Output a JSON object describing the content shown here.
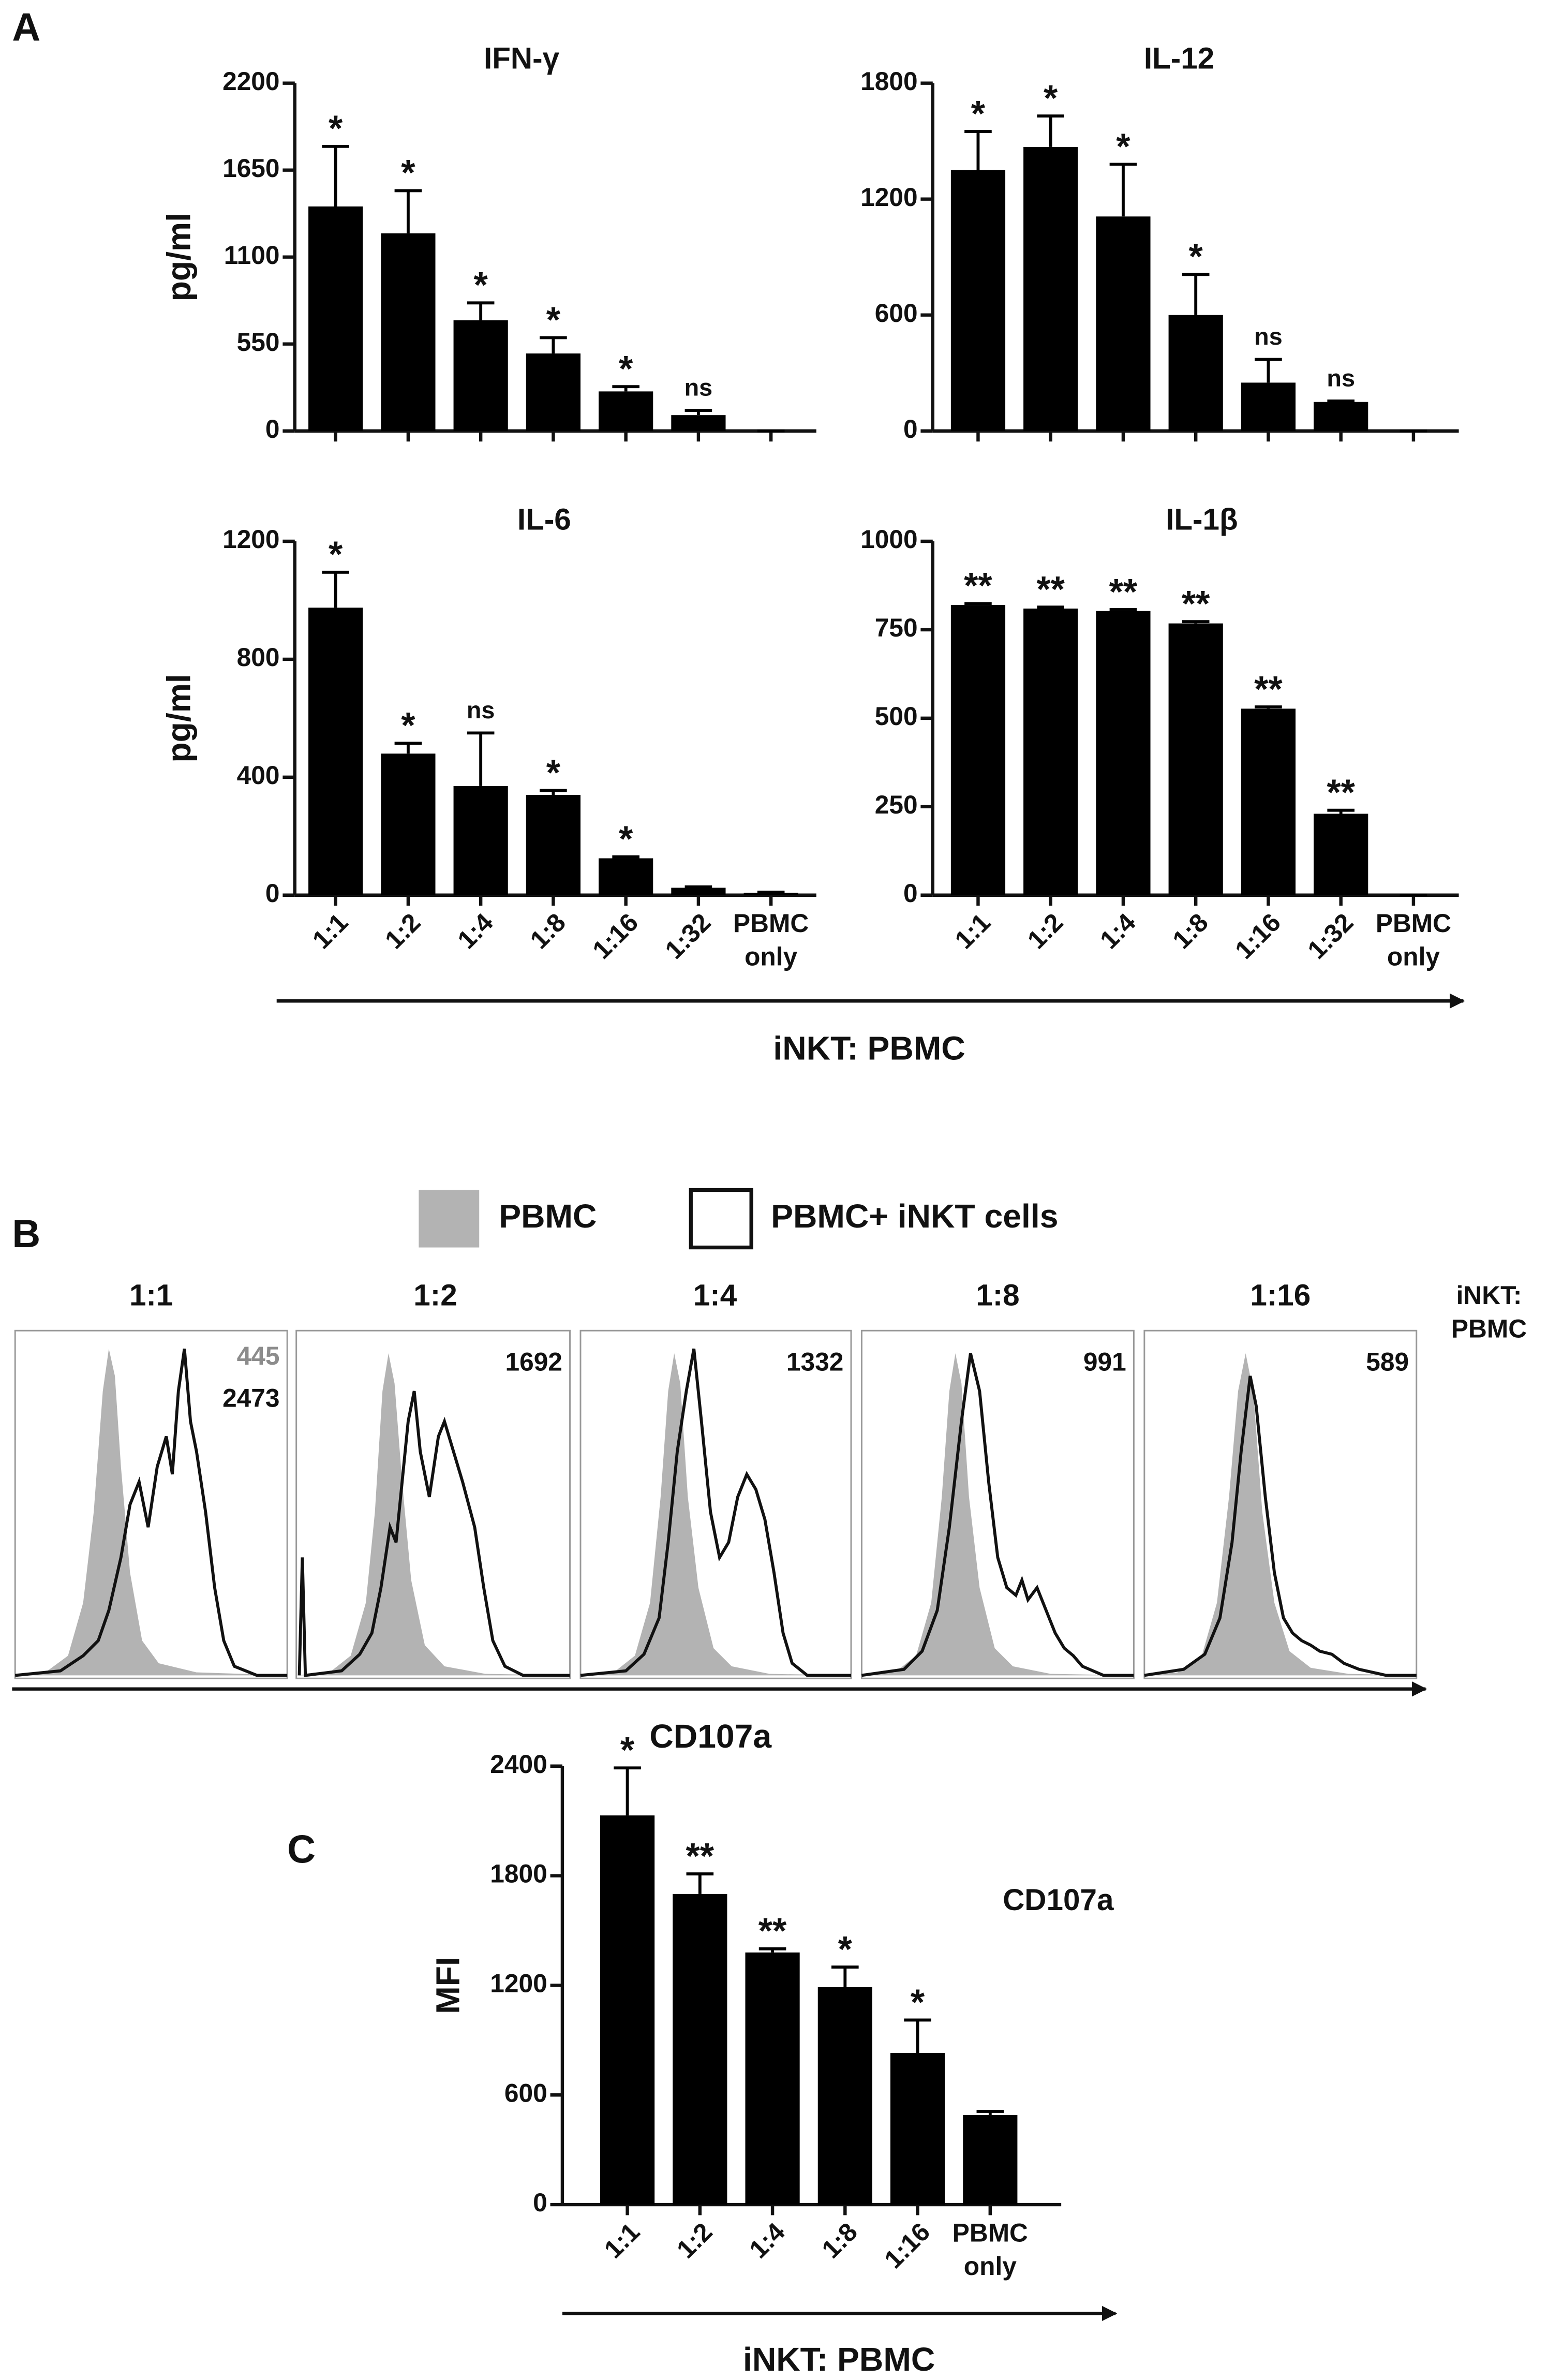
{
  "panel_labels": [
    "A",
    "B",
    "C"
  ],
  "panel_a": {
    "xlabel": "iNKT: PBMC"
  },
  "chart_data": [
    {
      "type": "bar",
      "title": "IFN-γ",
      "ylabel": "pg/ml",
      "ylim": [
        0,
        2200
      ],
      "yticks": [
        0,
        550,
        1100,
        1650,
        2200
      ],
      "color": "#000000",
      "values": [
        1420,
        1250,
        700,
        490,
        250,
        100,
        0
      ],
      "errors": [
        380,
        270,
        110,
        100,
        30,
        30,
        0
      ],
      "significance": [
        "*",
        "*",
        "*",
        "*",
        "*",
        "ns",
        null
      ]
    },
    {
      "type": "bar",
      "title": "IL-12",
      "ylim": [
        0,
        1800
      ],
      "yticks": [
        0,
        600,
        1200,
        1800
      ],
      "color": "#000000",
      "values": [
        1350,
        1470,
        1110,
        600,
        250,
        150,
        0
      ],
      "errors": [
        200,
        160,
        270,
        210,
        120,
        5,
        0
      ],
      "significance": [
        "*",
        "*",
        "*",
        "*",
        "ns",
        "ns",
        null
      ]
    },
    {
      "type": "bar",
      "title": "IL-6",
      "ylabel": "pg/ml",
      "ylim": [
        0,
        1200
      ],
      "yticks": [
        0,
        400,
        800,
        1200
      ],
      "categories": [
        "1:1",
        "1:2",
        "1:4",
        "1:8",
        "1:16",
        "1:32",
        "PBMC only"
      ],
      "color": "#000000",
      "values": [
        975,
        480,
        370,
        340,
        125,
        25,
        8
      ],
      "errors": [
        120,
        35,
        180,
        15,
        5,
        3,
        2
      ],
      "significance": [
        "*",
        "*",
        "ns",
        "*",
        "*",
        null,
        null
      ]
    },
    {
      "type": "bar",
      "title": "IL-1β",
      "ylim": [
        0,
        1000
      ],
      "yticks": [
        0,
        250,
        500,
        750,
        1000
      ],
      "categories": [
        "1:1",
        "1:2",
        "1:4",
        "1:8",
        "1:16",
        "1:32",
        "PBMC only"
      ],
      "color": "#000000",
      "values": [
        820,
        810,
        803,
        768,
        527,
        230,
        0
      ],
      "errors": [
        4,
        4,
        4,
        5,
        5,
        10,
        0
      ],
      "significance": [
        "**",
        "**",
        "**",
        "**",
        "**",
        "**",
        null
      ]
    },
    {
      "type": "bar",
      "title": "CD107a",
      "ylabel": "MFI",
      "xlabel": "iNKT: PBMC",
      "ylim": [
        0,
        2400
      ],
      "yticks": [
        0,
        600,
        1200,
        1800,
        2400
      ],
      "categories": [
        "1:1",
        "1:2",
        "1:4",
        "1:8",
        "1:16",
        "PBMC only"
      ],
      "color": "#000000",
      "values": [
        2130,
        1700,
        1380,
        1190,
        830,
        490
      ],
      "errors": [
        260,
        110,
        20,
        110,
        180,
        20
      ],
      "significance": [
        "*",
        "**",
        "**",
        "*",
        "*",
        null
      ]
    }
  ],
  "panel_b": {
    "legend": [
      "PBMC",
      "PBMC+ iNKT cells"
    ],
    "xlabel": "CD107a",
    "side_label": "iNKT: PBMC",
    "panels": [
      {
        "title": "1:1",
        "pbmc_mfi": 445,
        "inkt_mfi": 2473
      },
      {
        "title": "1:2",
        "inkt_mfi": 1692
      },
      {
        "title": "1:4",
        "inkt_mfi": 1332
      },
      {
        "title": "1:8",
        "inkt_mfi": 991
      },
      {
        "title": "1:16",
        "inkt_mfi": 589
      }
    ]
  }
}
